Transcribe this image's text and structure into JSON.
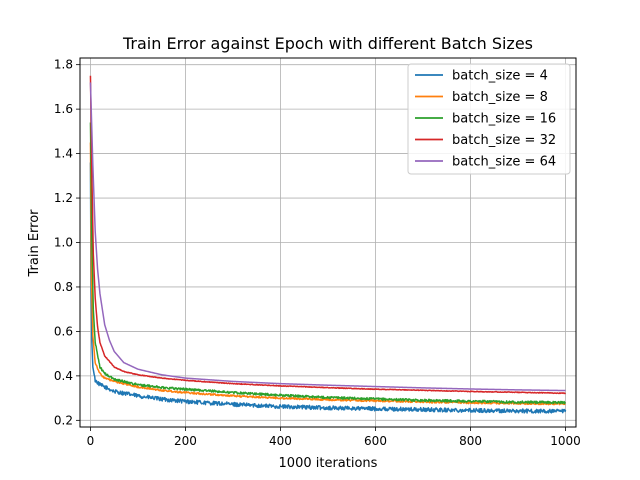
{
  "chart_data": {
    "type": "line",
    "title": "Train Error against Epoch with different Batch Sizes",
    "xlabel": "1000 iterations",
    "ylabel": "Train Error",
    "xlim": [
      -22,
      1022
    ],
    "ylim": [
      0.17,
      1.83
    ],
    "xticks": [
      0,
      200,
      400,
      600,
      800,
      1000
    ],
    "yticks": [
      0.2,
      0.4,
      0.6,
      0.8,
      1.0,
      1.2,
      1.4,
      1.6,
      1.8
    ],
    "xtick_labels": [
      "0",
      "200",
      "400",
      "600",
      "800",
      "1000"
    ],
    "ytick_labels": [
      "0.2",
      "0.4",
      "0.6",
      "0.8",
      "1.0",
      "1.2",
      "1.4",
      "1.6",
      "1.8"
    ],
    "grid": true,
    "legend_position": "top-right",
    "series": [
      {
        "name": "batch_size = 4",
        "color": "#1f77b4",
        "x": [
          0,
          1,
          3,
          5,
          10,
          20,
          30,
          50,
          100,
          150,
          200,
          250,
          300,
          400,
          500,
          600,
          700,
          800,
          900,
          1000
        ],
        "y": [
          1.36,
          0.9,
          0.55,
          0.44,
          0.38,
          0.36,
          0.35,
          0.33,
          0.31,
          0.295,
          0.285,
          0.278,
          0.272,
          0.262,
          0.256,
          0.252,
          0.248,
          0.245,
          0.242,
          0.24
        ],
        "noise": 0.009
      },
      {
        "name": "batch_size = 8",
        "color": "#ff7f0e",
        "x": [
          0,
          2,
          5,
          10,
          20,
          30,
          50,
          100,
          150,
          200,
          300,
          400,
          500,
          600,
          700,
          800,
          900,
          1000
        ],
        "y": [
          1.45,
          0.85,
          0.58,
          0.46,
          0.41,
          0.39,
          0.375,
          0.35,
          0.335,
          0.325,
          0.31,
          0.3,
          0.293,
          0.288,
          0.283,
          0.279,
          0.276,
          0.274
        ],
        "noise": 0.004
      },
      {
        "name": "batch_size = 16",
        "color": "#2ca02c",
        "x": [
          0,
          3,
          6,
          10,
          20,
          30,
          50,
          100,
          150,
          200,
          300,
          400,
          500,
          600,
          700,
          800,
          900,
          1000
        ],
        "y": [
          1.54,
          1.0,
          0.7,
          0.55,
          0.44,
          0.41,
          0.385,
          0.36,
          0.348,
          0.34,
          0.325,
          0.313,
          0.303,
          0.296,
          0.29,
          0.286,
          0.282,
          0.28
        ],
        "noise": 0.005
      },
      {
        "name": "batch_size = 32",
        "color": "#d62728",
        "x": [
          0,
          3,
          6,
          10,
          15,
          20,
          30,
          50,
          70,
          100,
          150,
          200,
          300,
          400,
          500,
          600,
          700,
          800,
          900,
          1000
        ],
        "y": [
          1.75,
          1.3,
          0.95,
          0.75,
          0.62,
          0.55,
          0.49,
          0.44,
          0.42,
          0.405,
          0.39,
          0.38,
          0.365,
          0.355,
          0.347,
          0.34,
          0.335,
          0.33,
          0.326,
          0.322
        ],
        "noise": 0.0015
      },
      {
        "name": "batch_size = 64",
        "color": "#9467bd",
        "x": [
          0,
          5,
          10,
          15,
          20,
          30,
          40,
          50,
          70,
          100,
          150,
          200,
          300,
          400,
          500,
          600,
          700,
          800,
          900,
          1000
        ],
        "y": [
          1.72,
          1.35,
          1.05,
          0.88,
          0.77,
          0.63,
          0.56,
          0.51,
          0.46,
          0.43,
          0.405,
          0.39,
          0.375,
          0.365,
          0.358,
          0.352,
          0.346,
          0.341,
          0.337,
          0.334
        ],
        "noise": 0.0
      }
    ]
  }
}
